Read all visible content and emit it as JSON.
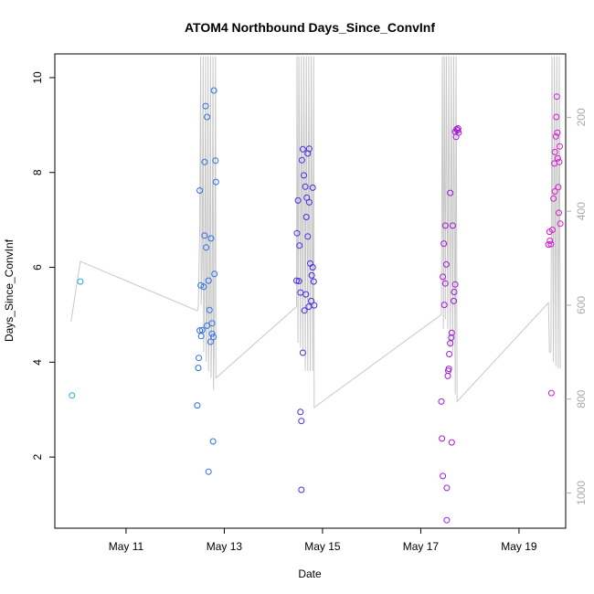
{
  "chart_data": {
    "type": "scatter",
    "title": "ATOM4 Northbound Days_Since_ConvInf",
    "xlabel": "Date",
    "ylabel": "Days_Since_ConvInf",
    "xlim": [
      9.55,
      19.95
    ],
    "ylim": [
      0.5,
      10.5
    ],
    "x_ticks": [
      {
        "value": 11,
        "label": "May 11"
      },
      {
        "value": 13,
        "label": "May 13"
      },
      {
        "value": 15,
        "label": "May 15"
      },
      {
        "value": 17,
        "label": "May 17"
      },
      {
        "value": 19,
        "label": "May 19"
      }
    ],
    "y_ticks": [
      2,
      4,
      6,
      8,
      10
    ],
    "right_axis": {
      "color": "#aaaaaa",
      "ylim": [
        1075,
        65
      ],
      "ticks": [
        200,
        400,
        600,
        800,
        1000
      ]
    },
    "points": [
      {
        "x": 9.9,
        "y": 3.3,
        "color": "#1fa8d8"
      },
      {
        "x": 10.07,
        "y": 5.7,
        "color": "#1fa8d8"
      },
      {
        "x": 12.45,
        "y": 3.09,
        "color": "#2d6ee8"
      },
      {
        "x": 12.47,
        "y": 3.88,
        "color": "#2d6ee8"
      },
      {
        "x": 12.48,
        "y": 4.09,
        "color": "#2d6ee8"
      },
      {
        "x": 12.5,
        "y": 4.67,
        "color": "#2d6ee8"
      },
      {
        "x": 12.5,
        "y": 7.62,
        "color": "#2d6ee8"
      },
      {
        "x": 12.52,
        "y": 5.62,
        "color": "#2d6ee8"
      },
      {
        "x": 12.53,
        "y": 4.55,
        "color": "#2d6ee8"
      },
      {
        "x": 12.55,
        "y": 4.68,
        "color": "#2d6ee8"
      },
      {
        "x": 12.58,
        "y": 5.59,
        "color": "#2d6ee8"
      },
      {
        "x": 12.6,
        "y": 8.22,
        "color": "#2d6ee8"
      },
      {
        "x": 12.6,
        "y": 6.67,
        "color": "#2d6ee8"
      },
      {
        "x": 12.62,
        "y": 9.4,
        "color": "#2d6ee8"
      },
      {
        "x": 12.63,
        "y": 6.42,
        "color": "#2d6ee8"
      },
      {
        "x": 12.65,
        "y": 9.17,
        "color": "#2d6ee8"
      },
      {
        "x": 12.65,
        "y": 4.77,
        "color": "#2d6ee8"
      },
      {
        "x": 12.68,
        "y": 1.69,
        "color": "#2d6ee8"
      },
      {
        "x": 12.68,
        "y": 5.72,
        "color": "#2d6ee8"
      },
      {
        "x": 12.7,
        "y": 5.1,
        "color": "#2d6ee8"
      },
      {
        "x": 12.72,
        "y": 4.43,
        "color": "#2d6ee8"
      },
      {
        "x": 12.73,
        "y": 6.61,
        "color": "#2d6ee8"
      },
      {
        "x": 12.75,
        "y": 4.6,
        "color": "#2d6ee8"
      },
      {
        "x": 12.75,
        "y": 4.82,
        "color": "#2d6ee8"
      },
      {
        "x": 12.77,
        "y": 2.33,
        "color": "#2d6ee8"
      },
      {
        "x": 12.78,
        "y": 4.53,
        "color": "#2d6ee8"
      },
      {
        "x": 12.79,
        "y": 9.73,
        "color": "#2d6ee8"
      },
      {
        "x": 12.8,
        "y": 5.86,
        "color": "#2d6ee8"
      },
      {
        "x": 12.82,
        "y": 8.25,
        "color": "#2d6ee8"
      },
      {
        "x": 12.83,
        "y": 7.8,
        "color": "#2d6ee8"
      },
      {
        "x": 14.47,
        "y": 5.72,
        "color": "#4a2ae6"
      },
      {
        "x": 14.48,
        "y": 6.72,
        "color": "#4a2ae6"
      },
      {
        "x": 14.5,
        "y": 7.41,
        "color": "#4a2ae6"
      },
      {
        "x": 14.52,
        "y": 5.71,
        "color": "#4a2ae6"
      },
      {
        "x": 14.53,
        "y": 6.46,
        "color": "#4a2ae6"
      },
      {
        "x": 14.55,
        "y": 5.47,
        "color": "#4a2ae6"
      },
      {
        "x": 14.55,
        "y": 2.95,
        "color": "#4a2ae6"
      },
      {
        "x": 14.57,
        "y": 1.31,
        "color": "#4a2ae6"
      },
      {
        "x": 14.57,
        "y": 2.76,
        "color": "#4a2ae6"
      },
      {
        "x": 14.58,
        "y": 8.26,
        "color": "#4a2ae6"
      },
      {
        "x": 14.6,
        "y": 8.49,
        "color": "#4a2ae6"
      },
      {
        "x": 14.6,
        "y": 4.2,
        "color": "#4a2ae6"
      },
      {
        "x": 14.62,
        "y": 7.94,
        "color": "#4a2ae6"
      },
      {
        "x": 14.63,
        "y": 5.09,
        "color": "#4a2ae6"
      },
      {
        "x": 14.65,
        "y": 7.7,
        "color": "#4a2ae6"
      },
      {
        "x": 14.66,
        "y": 5.43,
        "color": "#4a2ae6"
      },
      {
        "x": 14.67,
        "y": 7.06,
        "color": "#4a2ae6"
      },
      {
        "x": 14.68,
        "y": 7.47,
        "color": "#4a2ae6"
      },
      {
        "x": 14.7,
        "y": 6.65,
        "color": "#4a2ae6"
      },
      {
        "x": 14.7,
        "y": 8.4,
        "color": "#4a2ae6"
      },
      {
        "x": 14.72,
        "y": 5.17,
        "color": "#4a2ae6"
      },
      {
        "x": 14.73,
        "y": 8.5,
        "color": "#4a2ae6"
      },
      {
        "x": 14.73,
        "y": 7.37,
        "color": "#4a2ae6"
      },
      {
        "x": 14.75,
        "y": 6.08,
        "color": "#4a2ae6"
      },
      {
        "x": 14.77,
        "y": 5.29,
        "color": "#4a2ae6"
      },
      {
        "x": 14.78,
        "y": 5.83,
        "color": "#4a2ae6"
      },
      {
        "x": 14.8,
        "y": 6.0,
        "color": "#4a2ae6"
      },
      {
        "x": 14.8,
        "y": 7.68,
        "color": "#4a2ae6"
      },
      {
        "x": 14.82,
        "y": 5.7,
        "color": "#4a2ae6"
      },
      {
        "x": 14.83,
        "y": 5.2,
        "color": "#4a2ae6"
      },
      {
        "x": 17.42,
        "y": 3.17,
        "color": "#a21ad8"
      },
      {
        "x": 17.43,
        "y": 2.39,
        "color": "#a21ad8"
      },
      {
        "x": 17.45,
        "y": 5.8,
        "color": "#a21ad8"
      },
      {
        "x": 17.45,
        "y": 1.6,
        "color": "#a21ad8"
      },
      {
        "x": 17.47,
        "y": 6.5,
        "color": "#a21ad8"
      },
      {
        "x": 17.48,
        "y": 5.21,
        "color": "#a21ad8"
      },
      {
        "x": 17.5,
        "y": 6.88,
        "color": "#a21ad8"
      },
      {
        "x": 17.5,
        "y": 5.66,
        "color": "#a21ad8"
      },
      {
        "x": 17.52,
        "y": 6.06,
        "color": "#a21ad8"
      },
      {
        "x": 17.53,
        "y": 1.35,
        "color": "#a21ad8"
      },
      {
        "x": 17.53,
        "y": 0.67,
        "color": "#a21ad8"
      },
      {
        "x": 17.55,
        "y": 3.71,
        "color": "#a21ad8"
      },
      {
        "x": 17.56,
        "y": 3.82,
        "color": "#a21ad8"
      },
      {
        "x": 17.57,
        "y": 3.86,
        "color": "#a21ad8"
      },
      {
        "x": 17.58,
        "y": 4.17,
        "color": "#a21ad8"
      },
      {
        "x": 17.6,
        "y": 4.4,
        "color": "#a21ad8"
      },
      {
        "x": 17.6,
        "y": 7.57,
        "color": "#a21ad8"
      },
      {
        "x": 17.62,
        "y": 4.52,
        "color": "#a21ad8"
      },
      {
        "x": 17.63,
        "y": 4.62,
        "color": "#a21ad8"
      },
      {
        "x": 17.63,
        "y": 2.31,
        "color": "#a21ad8"
      },
      {
        "x": 17.65,
        "y": 6.88,
        "color": "#a21ad8"
      },
      {
        "x": 17.67,
        "y": 5.29,
        "color": "#a21ad8"
      },
      {
        "x": 17.68,
        "y": 5.48,
        "color": "#a21ad8"
      },
      {
        "x": 17.7,
        "y": 5.64,
        "color": "#a21ad8"
      },
      {
        "x": 17.7,
        "y": 8.86,
        "color": "#a21ad8"
      },
      {
        "x": 17.72,
        "y": 8.75,
        "color": "#a21ad8"
      },
      {
        "x": 17.73,
        "y": 8.91,
        "color": "#a21ad8"
      },
      {
        "x": 17.75,
        "y": 8.89,
        "color": "#a21ad8"
      },
      {
        "x": 17.76,
        "y": 8.93,
        "color": "#a21ad8"
      },
      {
        "x": 17.77,
        "y": 8.84,
        "color": "#a21ad8"
      },
      {
        "x": 19.6,
        "y": 6.48,
        "color": "#d61ad0"
      },
      {
        "x": 19.62,
        "y": 6.75,
        "color": "#d61ad0"
      },
      {
        "x": 19.63,
        "y": 6.56,
        "color": "#d61ad0"
      },
      {
        "x": 19.65,
        "y": 6.49,
        "color": "#d61ad0"
      },
      {
        "x": 19.66,
        "y": 3.35,
        "color": "#d61ad0"
      },
      {
        "x": 19.68,
        "y": 6.79,
        "color": "#d61ad0"
      },
      {
        "x": 19.7,
        "y": 7.45,
        "color": "#d61ad0"
      },
      {
        "x": 19.72,
        "y": 8.19,
        "color": "#d61ad0"
      },
      {
        "x": 19.73,
        "y": 7.6,
        "color": "#d61ad0"
      },
      {
        "x": 19.73,
        "y": 8.43,
        "color": "#d61ad0"
      },
      {
        "x": 19.75,
        "y": 8.76,
        "color": "#d61ad0"
      },
      {
        "x": 19.76,
        "y": 9.17,
        "color": "#d61ad0"
      },
      {
        "x": 19.77,
        "y": 9.6,
        "color": "#d61ad0"
      },
      {
        "x": 19.78,
        "y": 8.84,
        "color": "#d61ad0"
      },
      {
        "x": 19.79,
        "y": 8.3,
        "color": "#d61ad0"
      },
      {
        "x": 19.8,
        "y": 7.69,
        "color": "#d61ad0"
      },
      {
        "x": 19.81,
        "y": 7.15,
        "color": "#d61ad0"
      },
      {
        "x": 19.82,
        "y": 8.22,
        "color": "#d61ad0"
      },
      {
        "x": 19.83,
        "y": 8.55,
        "color": "#d61ad0"
      },
      {
        "x": 19.84,
        "y": 6.92,
        "color": "#d61ad0"
      }
    ],
    "trace": {
      "color": "#c8c8c8",
      "axis": "right",
      "points": [
        [
          9.88,
          635
        ],
        [
          10.07,
          507
        ],
        [
          12.45,
          612
        ],
        [
          12.47,
          605
        ],
        [
          12.5,
          430
        ],
        [
          12.52,
          70
        ],
        [
          12.53,
          600
        ],
        [
          12.55,
          500
        ],
        [
          12.57,
          70
        ],
        [
          12.58,
          700
        ],
        [
          12.6,
          560
        ],
        [
          12.62,
          70
        ],
        [
          12.63,
          720
        ],
        [
          12.65,
          600
        ],
        [
          12.67,
          70
        ],
        [
          12.68,
          740
        ],
        [
          12.7,
          580
        ],
        [
          12.72,
          70
        ],
        [
          12.73,
          755
        ],
        [
          12.75,
          620
        ],
        [
          12.77,
          70
        ],
        [
          12.78,
          780
        ],
        [
          12.8,
          650
        ],
        [
          12.82,
          70
        ],
        [
          12.83,
          755
        ],
        [
          14.47,
          603
        ],
        [
          14.48,
          70
        ],
        [
          14.5,
          680
        ],
        [
          14.52,
          70
        ],
        [
          14.55,
          690
        ],
        [
          14.57,
          70
        ],
        [
          14.6,
          700
        ],
        [
          14.62,
          70
        ],
        [
          14.65,
          740
        ],
        [
          14.67,
          70
        ],
        [
          14.7,
          740
        ],
        [
          14.72,
          70
        ],
        [
          14.75,
          740
        ],
        [
          14.77,
          70
        ],
        [
          14.8,
          740
        ],
        [
          14.82,
          70
        ],
        [
          14.83,
          818
        ],
        [
          17.42,
          620
        ],
        [
          17.44,
          70
        ],
        [
          17.46,
          650
        ],
        [
          17.48,
          70
        ],
        [
          17.5,
          630
        ],
        [
          17.52,
          70
        ],
        [
          17.55,
          650
        ],
        [
          17.57,
          70
        ],
        [
          17.6,
          690
        ],
        [
          17.62,
          70
        ],
        [
          17.65,
          700
        ],
        [
          17.67,
          70
        ],
        [
          17.7,
          790
        ],
        [
          17.72,
          70
        ],
        [
          17.74,
          805
        ],
        [
          19.6,
          595
        ],
        [
          19.62,
          700
        ],
        [
          19.65,
          700
        ],
        [
          19.67,
          70
        ],
        [
          19.7,
          720
        ],
        [
          19.72,
          70
        ],
        [
          19.75,
          730
        ],
        [
          19.77,
          70
        ],
        [
          19.8,
          735
        ],
        [
          19.82,
          70
        ],
        [
          19.84,
          735
        ]
      ]
    }
  }
}
